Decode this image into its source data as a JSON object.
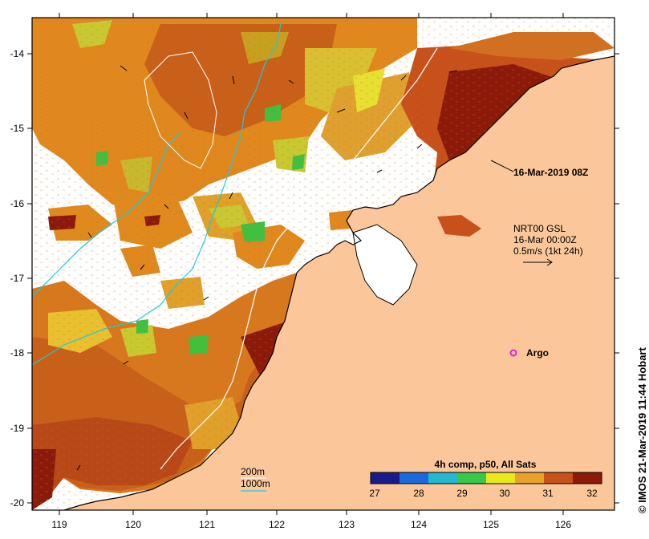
{
  "map": {
    "colorbar_title": "4h comp, p50, All Sats",
    "colorbar_ticks": [
      "27",
      "28",
      "29",
      "30",
      "31",
      "32"
    ],
    "colorbar_colors": [
      "#1a1a8c",
      "#1a6adc",
      "#22b8d0",
      "#36c84a",
      "#e8e81a",
      "#e8a22c",
      "#c8501a",
      "#8c1a0a"
    ],
    "x_ticks": [
      "119",
      "120",
      "121",
      "122",
      "123",
      "124",
      "125",
      "126"
    ],
    "y_ticks": [
      "-14",
      "-15",
      "-16",
      "-17",
      "-18",
      "-19",
      "-20"
    ],
    "timestamp_label": "16-Mar-2019 08Z",
    "current_legend": {
      "line1": "NRT00 GSL",
      "line2": "16-Mar 00:00Z",
      "line3": "0.5m/s (1kt 24h)"
    },
    "argo_label": "Argo",
    "depth_legend": {
      "contour_200": "200m",
      "contour_1000": "1000m"
    },
    "credit": "© IMOS 21-Mar-2019 11:44 Hobart",
    "colors": {
      "land": "#fbc79a",
      "frame": "#000000",
      "contour_1000": "#22c8d8",
      "contour_200": "#ffffff",
      "argo": "#e020e0"
    }
  }
}
